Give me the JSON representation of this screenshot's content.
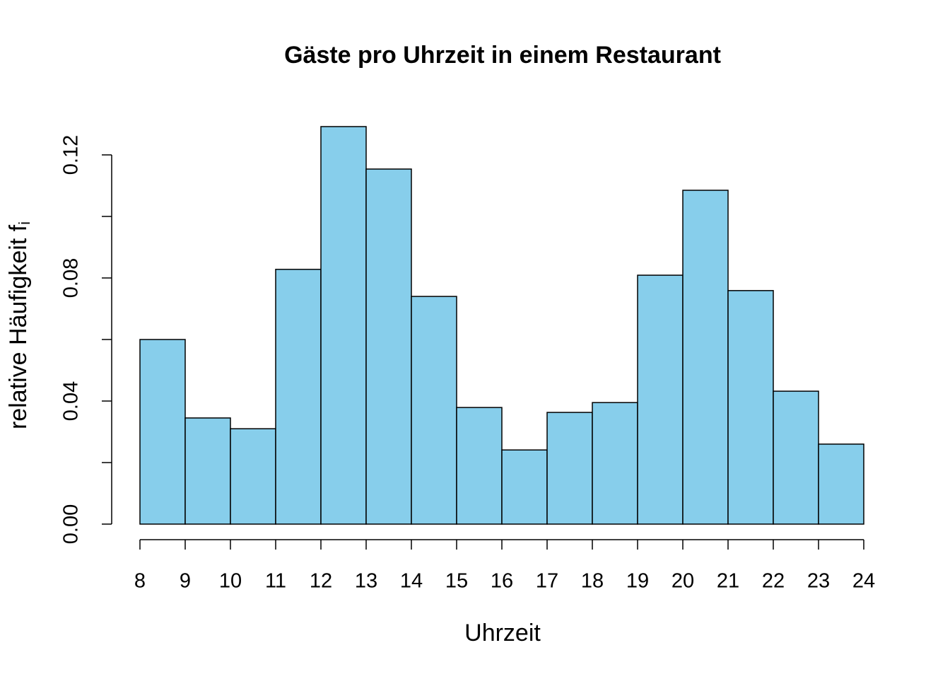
{
  "chart_data": {
    "type": "histogram",
    "title": "Gäste pro Uhrzeit in einem Restaurant",
    "xlabel": "Uhrzeit",
    "ylabel": "relative Häufigkeit f",
    "ylabel_subscript": "i",
    "bins": [
      8,
      9,
      10,
      11,
      12,
      13,
      14,
      15,
      16,
      17,
      18,
      19,
      20,
      21,
      22,
      23,
      24
    ],
    "values": [
      0.06,
      0.0345,
      0.031,
      0.0828,
      0.1292,
      0.1154,
      0.074,
      0.0379,
      0.0241,
      0.0363,
      0.0395,
      0.0809,
      0.1085,
      0.0759,
      0.0432,
      0.026
    ],
    "color": "#87ceeb",
    "xlim": [
      8,
      24
    ],
    "xticks": [
      8,
      9,
      10,
      11,
      12,
      13,
      14,
      15,
      16,
      17,
      18,
      19,
      20,
      21,
      22,
      23,
      24
    ],
    "ylim": [
      0,
      0.12
    ],
    "yticks": [
      {
        "value": 0,
        "label": "0.00"
      },
      {
        "value": 0.04,
        "label": "0.04"
      },
      {
        "value": 0.08,
        "label": "0.08"
      },
      {
        "value": 0.12,
        "label": "0.12"
      }
    ],
    "yticks_minor": [
      0.02,
      0.06,
      0.1
    ]
  }
}
